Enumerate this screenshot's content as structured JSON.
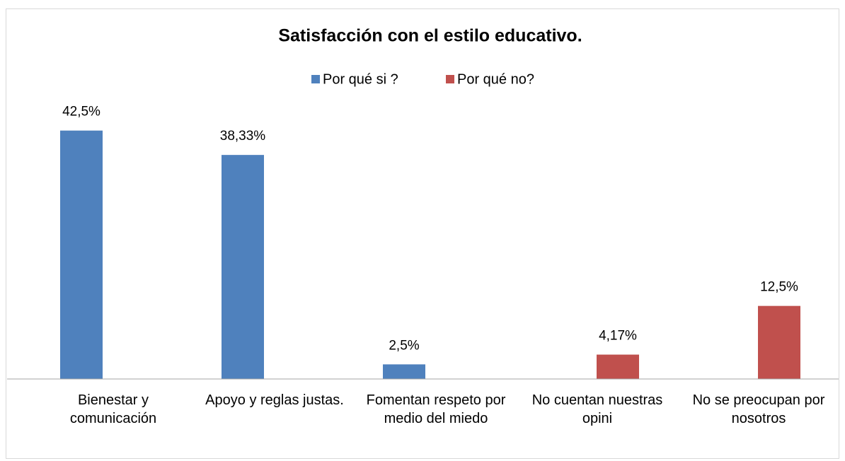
{
  "chart_data": {
    "type": "bar",
    "title": "Satisfacción con el estilo educativo.",
    "categories": [
      "Bienestar y comunicación",
      "Apoyo y reglas justas.",
      "Fomentan respeto por medio del miedo",
      "No cuentan nuestras opini",
      "No se preocupan por nosotros"
    ],
    "series": [
      {
        "name": "Por qué si ?",
        "color": "#4f81bd",
        "values": [
          42.5,
          38.33,
          2.5,
          null,
          null
        ],
        "value_labels": [
          "42,5%",
          "38,33%",
          "2,5%",
          null,
          null
        ]
      },
      {
        "name": "Por qué no?",
        "color": "#c0504d",
        "values": [
          null,
          null,
          null,
          4.17,
          12.5
        ],
        "value_labels": [
          null,
          null,
          null,
          "4,17%",
          "12,5%"
        ]
      }
    ],
    "ylim": [
      0,
      45
    ],
    "legend": "top"
  }
}
